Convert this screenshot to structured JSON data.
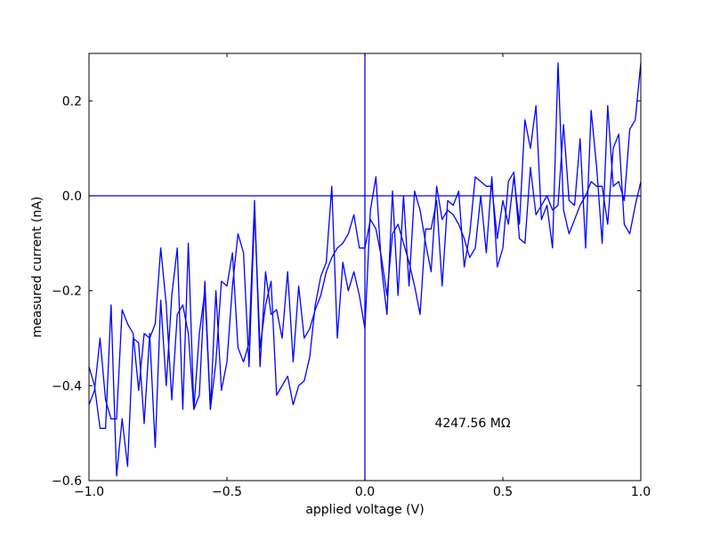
{
  "chart_data": {
    "type": "line",
    "xlabel": "applied voltage (V)",
    "ylabel": "measured current (nA)",
    "xlim": [
      -1.0,
      1.0
    ],
    "ylim": [
      -0.6,
      0.3
    ],
    "x_ticks": [
      -1.0,
      -0.5,
      0.0,
      0.5,
      1.0
    ],
    "x_tick_labels": [
      "−1.0",
      "−0.5",
      "0.0",
      "0.5",
      "1.0"
    ],
    "y_ticks": [
      -0.6,
      -0.4,
      -0.2,
      0.0,
      0.2
    ],
    "y_tick_labels": [
      "−0.6",
      "−0.4",
      "−0.2",
      "0.0",
      "0.2"
    ],
    "grid": false,
    "legend": "none",
    "annotation": "4247.56 MΩ",
    "reference_lines": {
      "horizontal_y": 0.0,
      "vertical_x": 0.0
    },
    "series_color": "#0000ff",
    "series": [
      {
        "x": [
          -1.0,
          -0.98,
          -0.96,
          -0.94,
          -0.92,
          -0.9,
          -0.88,
          -0.86,
          -0.84,
          -0.82,
          -0.8,
          -0.78,
          -0.76,
          -0.74,
          -0.72,
          -0.7,
          -0.68,
          -0.66,
          -0.64,
          -0.62,
          -0.6,
          -0.58,
          -0.56,
          -0.54,
          -0.52,
          -0.5,
          -0.48,
          -0.46,
          -0.44,
          -0.42,
          -0.4,
          -0.38,
          -0.36,
          -0.34,
          -0.32,
          -0.3,
          -0.28,
          -0.26,
          -0.24,
          -0.22,
          -0.2,
          -0.18,
          -0.16,
          -0.14,
          -0.12,
          -0.1,
          -0.08,
          -0.06,
          -0.04,
          -0.02,
          0.0,
          0.02,
          0.04,
          0.06,
          0.08,
          0.1,
          0.12,
          0.14,
          0.16,
          0.18,
          0.2,
          0.22,
          0.24,
          0.26,
          0.28,
          0.3,
          0.32,
          0.34,
          0.36,
          0.38,
          0.4,
          0.42,
          0.44,
          0.46,
          0.48,
          0.5,
          0.52,
          0.54,
          0.56,
          0.58,
          0.6,
          0.62,
          0.64,
          0.66,
          0.68,
          0.7,
          0.72,
          0.74,
          0.76,
          0.78,
          0.8,
          0.82,
          0.84,
          0.86,
          0.88,
          0.9,
          0.92,
          0.94,
          0.96,
          0.98,
          1.0
        ],
        "y": [
          -0.44,
          -0.41,
          -0.3,
          -0.43,
          -0.47,
          -0.47,
          -0.24,
          -0.27,
          -0.29,
          -0.41,
          -0.29,
          -0.3,
          -0.27,
          -0.11,
          -0.23,
          -0.43,
          -0.25,
          -0.23,
          -0.29,
          -0.45,
          -0.42,
          -0.18,
          -0.45,
          -0.35,
          -0.18,
          -0.19,
          -0.12,
          -0.32,
          -0.35,
          -0.31,
          -0.01,
          -0.36,
          -0.16,
          -0.25,
          -0.24,
          -0.3,
          -0.16,
          -0.35,
          -0.19,
          -0.3,
          -0.28,
          -0.24,
          -0.21,
          -0.16,
          -0.13,
          -0.11,
          -0.1,
          -0.08,
          -0.04,
          -0.11,
          -0.11,
          -0.05,
          -0.07,
          -0.13,
          -0.21,
          -0.08,
          -0.06,
          -0.1,
          -0.14,
          -0.19,
          -0.25,
          -0.07,
          -0.07,
          -0.01,
          -0.19,
          -0.01,
          -0.02,
          0.01,
          -0.15,
          -0.08,
          0.04,
          0.03,
          0.02,
          0.02,
          -0.09,
          -0.01,
          -0.06,
          0.04,
          -0.06,
          0.16,
          0.1,
          0.19,
          -0.05,
          -0.02,
          -0.11,
          0.28,
          -0.03,
          -0.08,
          -0.05,
          -0.02,
          0.0,
          0.03,
          0.02,
          0.02,
          -0.06,
          0.1,
          0.13,
          -0.06,
          -0.08,
          -0.02,
          0.03
        ]
      },
      {
        "x": [
          -1.0,
          -0.98,
          -0.96,
          -0.94,
          -0.92,
          -0.9,
          -0.88,
          -0.86,
          -0.84,
          -0.82,
          -0.8,
          -0.78,
          -0.76,
          -0.74,
          -0.72,
          -0.7,
          -0.68,
          -0.66,
          -0.64,
          -0.62,
          -0.6,
          -0.58,
          -0.56,
          -0.54,
          -0.52,
          -0.5,
          -0.48,
          -0.46,
          -0.44,
          -0.42,
          -0.4,
          -0.38,
          -0.36,
          -0.34,
          -0.32,
          -0.3,
          -0.28,
          -0.26,
          -0.24,
          -0.22,
          -0.2,
          -0.18,
          -0.16,
          -0.14,
          -0.12,
          -0.1,
          -0.08,
          -0.06,
          -0.04,
          -0.02,
          0.0,
          0.02,
          0.04,
          0.06,
          0.08,
          0.1,
          0.12,
          0.14,
          0.16,
          0.18,
          0.2,
          0.22,
          0.24,
          0.26,
          0.28,
          0.3,
          0.32,
          0.34,
          0.36,
          0.38,
          0.4,
          0.42,
          0.44,
          0.46,
          0.48,
          0.5,
          0.52,
          0.54,
          0.56,
          0.58,
          0.6,
          0.62,
          0.64,
          0.66,
          0.68,
          0.7,
          0.72,
          0.74,
          0.76,
          0.78,
          0.8,
          0.82,
          0.84,
          0.86,
          0.88,
          0.9,
          0.92,
          0.94,
          0.96,
          0.98,
          1.0
        ],
        "y": [
          -0.36,
          -0.4,
          -0.49,
          -0.49,
          -0.23,
          -0.59,
          -0.47,
          -0.57,
          -0.3,
          -0.31,
          -0.48,
          -0.29,
          -0.53,
          -0.22,
          -0.4,
          -0.21,
          -0.11,
          -0.45,
          -0.1,
          -0.45,
          -0.29,
          -0.2,
          -0.45,
          -0.2,
          -0.41,
          -0.35,
          -0.19,
          -0.08,
          -0.12,
          -0.36,
          -0.03,
          -0.32,
          -0.23,
          -0.18,
          -0.42,
          -0.4,
          -0.38,
          -0.44,
          -0.4,
          -0.39,
          -0.34,
          -0.23,
          -0.17,
          -0.14,
          0.02,
          -0.3,
          -0.14,
          -0.2,
          -0.16,
          -0.21,
          -0.28,
          -0.03,
          0.04,
          -0.15,
          -0.25,
          0.01,
          -0.21,
          0.0,
          -0.19,
          0.01,
          -0.03,
          -0.1,
          -0.16,
          0.02,
          -0.05,
          -0.03,
          -0.04,
          -0.06,
          -0.09,
          -0.13,
          -0.11,
          0.0,
          -0.12,
          0.04,
          -0.15,
          -0.11,
          0.03,
          0.05,
          -0.09,
          -0.1,
          0.06,
          -0.04,
          -0.02,
          0.0,
          -0.03,
          -0.02,
          0.15,
          -0.01,
          -0.02,
          0.12,
          -0.11,
          0.18,
          0.06,
          -0.1,
          0.19,
          0.02,
          0.03,
          -0.01,
          0.14,
          0.16,
          0.28
        ]
      }
    ]
  }
}
